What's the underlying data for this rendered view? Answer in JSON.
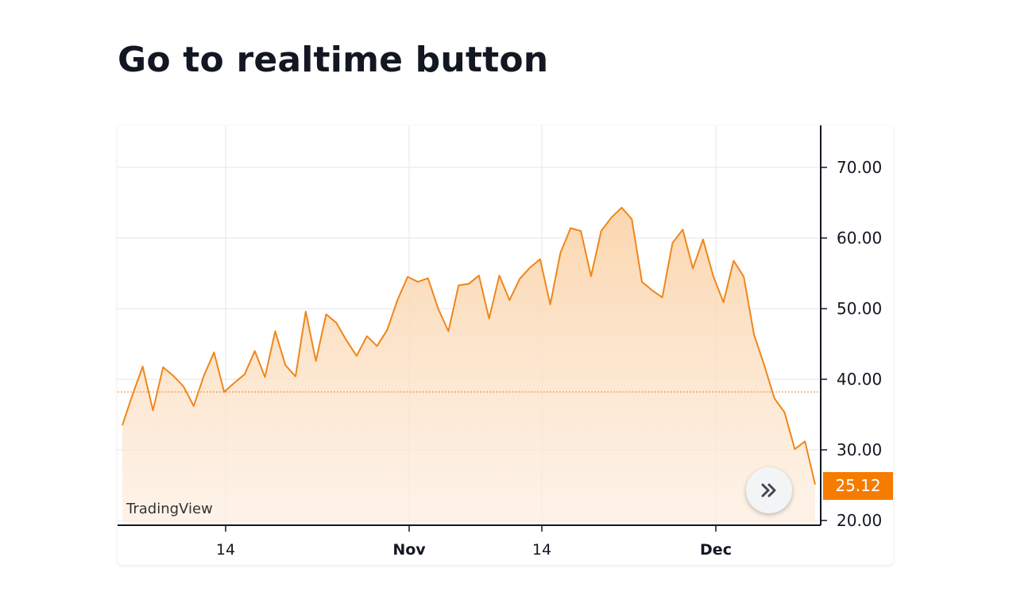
{
  "page": {
    "title": "Go to realtime button"
  },
  "chart": {
    "watermark": "TradingView",
    "last_price_label": "25.12",
    "realtime_button_icon": "double-chevron-right-icon",
    "colors": {
      "line": "#f0861a",
      "fill_top": "#fbd2a6",
      "fill_bottom": "#fdeee0",
      "badge": "#f57c00",
      "grid": "#e6ebef",
      "axis": "#131722"
    }
  },
  "chart_data": {
    "type": "area",
    "x_tick_labels": [
      "14",
      "Nov",
      "14",
      "Dec"
    ],
    "y_tick_labels": [
      "70.00",
      "60.00",
      "50.00",
      "40.00",
      "30.00",
      "20.00"
    ],
    "ylim": [
      20,
      75
    ],
    "grid": true,
    "reference_line_value": 38.2,
    "last_value": 25.12,
    "values": [
      33.5,
      37.8,
      41.8,
      35.6,
      41.7,
      40.5,
      39.0,
      36.2,
      40.5,
      43.8,
      38.2,
      39.5,
      40.7,
      44.0,
      40.3,
      46.8,
      42.0,
      40.4,
      49.6,
      42.6,
      49.2,
      48.0,
      45.5,
      43.3,
      46.1,
      44.7,
      47.0,
      51.2,
      54.5,
      53.8,
      54.3,
      50.0,
      46.8,
      53.3,
      53.5,
      54.7,
      48.6,
      54.7,
      51.2,
      54.2,
      55.8,
      57.0,
      50.6,
      57.9,
      61.4,
      61.0,
      54.6,
      61.0,
      62.9,
      64.3,
      62.7,
      53.8,
      52.6,
      51.6,
      59.3,
      61.2,
      55.7,
      59.8,
      54.6,
      50.9,
      56.8,
      54.5,
      46.3,
      42.0,
      37.3,
      35.3,
      30.1,
      31.2,
      25.1
    ]
  }
}
